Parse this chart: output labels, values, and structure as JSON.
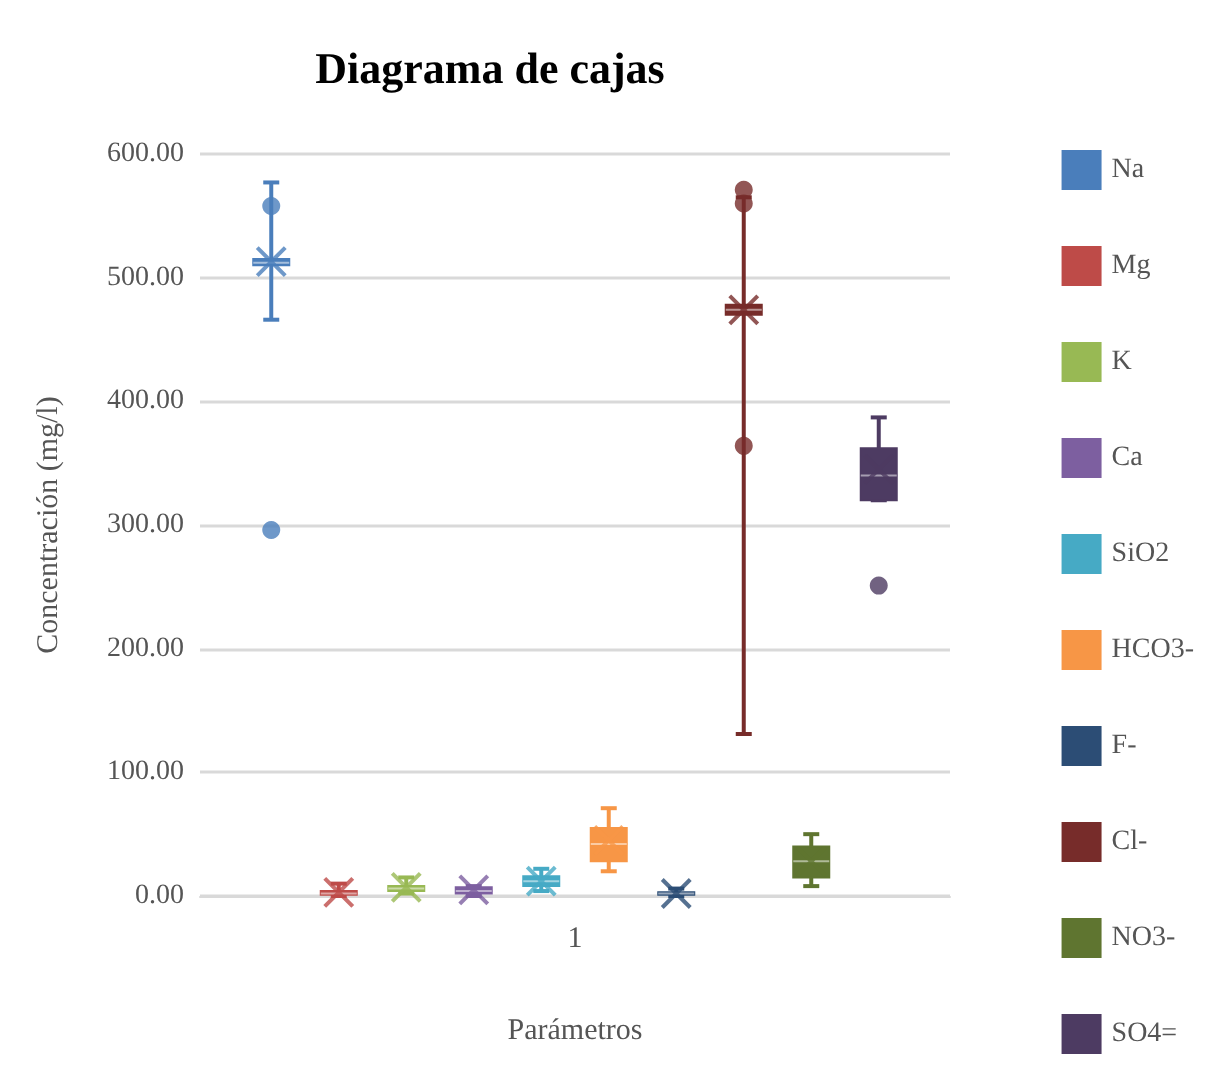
{
  "chart_data": {
    "type": "box",
    "title": "Diagrama de cajas",
    "xlabel": "Parámetros",
    "ylabel": "Concentración (mg/l)",
    "categories": [
      "1"
    ],
    "ylim": [
      0,
      600
    ],
    "yticks": [
      {
        "value": 0,
        "label": "0.00"
      },
      {
        "value": 100,
        "label": "100.00"
      },
      {
        "value": 200,
        "label": "200.00"
      },
      {
        "value": 300,
        "label": "300.00"
      },
      {
        "value": 400,
        "label": "400.00"
      },
      {
        "value": 500,
        "label": "500.00"
      },
      {
        "value": 600,
        "label": "600.00"
      }
    ],
    "grid": "y",
    "legend": "right",
    "series": [
      {
        "name": "Na",
        "color": "#4a7ebb",
        "boxes": [
          {
            "low": 466,
            "q1": 510,
            "median": 512,
            "q3": 515,
            "high": 577,
            "mean": 513,
            "outliers": [
              558,
              296
            ]
          }
        ]
      },
      {
        "name": "Mg",
        "color": "#be4b48",
        "boxes": [
          {
            "low": 0,
            "q1": 1,
            "median": 2,
            "q3": 4,
            "high": 10,
            "mean": 3
          }
        ]
      },
      {
        "name": "K",
        "color": "#98b954",
        "boxes": [
          {
            "low": 2,
            "q1": 4,
            "median": 6,
            "q3": 8,
            "high": 15,
            "mean": 7
          }
        ]
      },
      {
        "name": "Ca",
        "color": "#7d5fa0",
        "boxes": [
          {
            "low": 0,
            "q1": 2,
            "median": 4,
            "q3": 7,
            "high": 8,
            "mean": 5
          }
        ]
      },
      {
        "name": "SiO2",
        "color": "#46aac5",
        "boxes": [
          {
            "low": 4,
            "q1": 8,
            "median": 12,
            "q3": 16,
            "high": 22,
            "mean": 12
          }
        ]
      },
      {
        "name": "HCO3-",
        "color": "#f79646",
        "boxes": [
          {
            "low": 20,
            "q1": 28,
            "median": 42,
            "q3": 55,
            "high": 71,
            "mean": 45
          }
        ]
      },
      {
        "name": "F-",
        "color": "#2c4d75",
        "boxes": [
          {
            "low": 0,
            "q1": 1,
            "median": 2,
            "q3": 3,
            "high": 6,
            "mean": 2
          }
        ]
      },
      {
        "name": "Cl-",
        "color": "#772c2a",
        "boxes": [
          {
            "low": 131,
            "q1": 470,
            "median": 474,
            "q3": 478,
            "high": 565,
            "mean": 474,
            "outliers": [
              571,
              560,
              364
            ]
          }
        ]
      },
      {
        "name": "NO3-",
        "color": "#5f7530",
        "boxes": [
          {
            "low": 8,
            "q1": 15,
            "median": 28,
            "q3": 40,
            "high": 50,
            "mean": 28
          }
        ]
      },
      {
        "name": "SO4=",
        "color": "#4d3b62",
        "boxes": [
          {
            "low": 320,
            "q1": 320,
            "median": 340,
            "q3": 362,
            "high": 387,
            "mean": 345,
            "outliers": [
              251
            ]
          }
        ]
      }
    ]
  }
}
